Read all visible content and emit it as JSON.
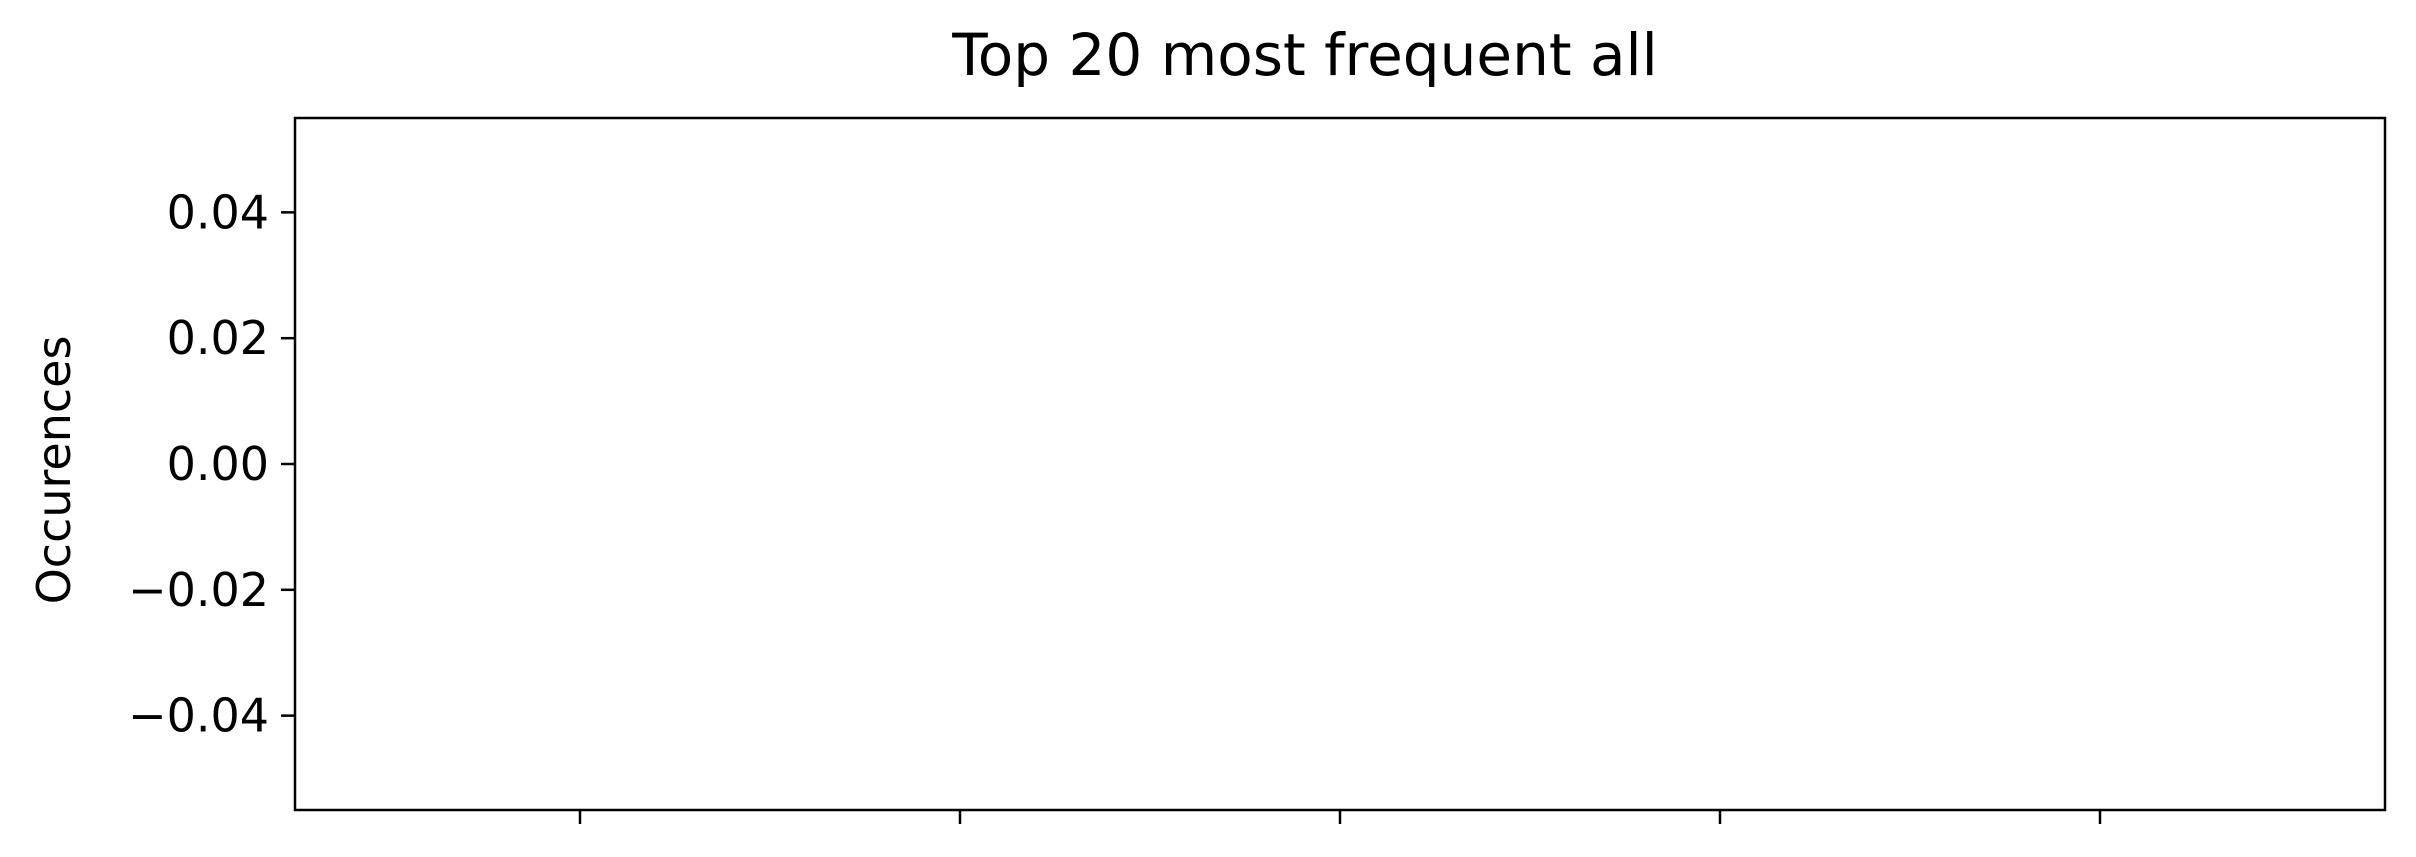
{
  "chart_data": {
    "type": "bar",
    "title": "Top 20 most frequent all",
    "xlabel": "",
    "ylabel": "Occurences",
    "categories": [],
    "values": [],
    "ylim": [
      -0.055,
      0.055
    ],
    "yticks": [
      -0.04,
      -0.02,
      0.0,
      0.02,
      0.04
    ],
    "ytick_labels": [
      "−0.04",
      "−0.02",
      "0.00",
      "0.02",
      "0.04"
    ],
    "xlim": [
      -0.75,
      4.75
    ],
    "xticks": [
      0,
      1,
      2,
      3,
      4
    ],
    "grid": false,
    "legend": "none",
    "colors": {
      "axis": "#000000",
      "background": "#ffffff"
    }
  }
}
